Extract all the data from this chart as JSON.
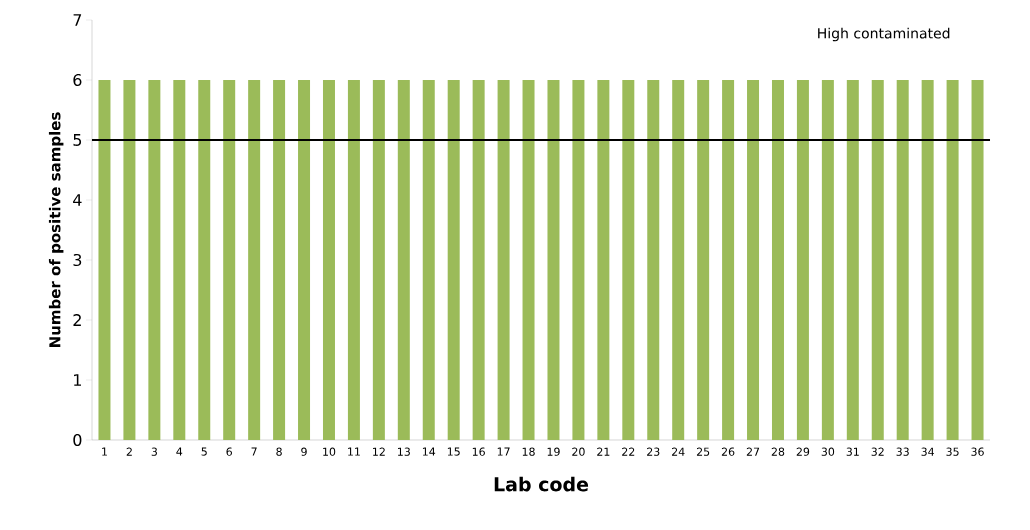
{
  "chart_data": {
    "type": "bar",
    "xlabel": "Lab code",
    "ylabel": "Number of positive samples",
    "annotations": [
      "High contaminated"
    ],
    "categories": [
      "1",
      "2",
      "3",
      "4",
      "5",
      "6",
      "7",
      "8",
      "9",
      "10",
      "11",
      "12",
      "13",
      "14",
      "15",
      "16",
      "17",
      "18",
      "19",
      "20",
      "21",
      "22",
      "23",
      "24",
      "25",
      "26",
      "27",
      "28",
      "29",
      "30",
      "31",
      "32",
      "33",
      "34",
      "35",
      "36"
    ],
    "values": [
      6,
      6,
      6,
      6,
      6,
      6,
      6,
      6,
      6,
      6,
      6,
      6,
      6,
      6,
      6,
      6,
      6,
      6,
      6,
      6,
      6,
      6,
      6,
      6,
      6,
      6,
      6,
      6,
      6,
      6,
      6,
      6,
      6,
      6,
      6,
      6
    ],
    "color": "#9bbb59",
    "ylim": [
      0,
      7
    ],
    "yticks": [
      0,
      1,
      2,
      3,
      4,
      5,
      6,
      7
    ],
    "ref_lines": [
      {
        "axis": "y",
        "value": 5,
        "color": "#000000"
      }
    ]
  }
}
